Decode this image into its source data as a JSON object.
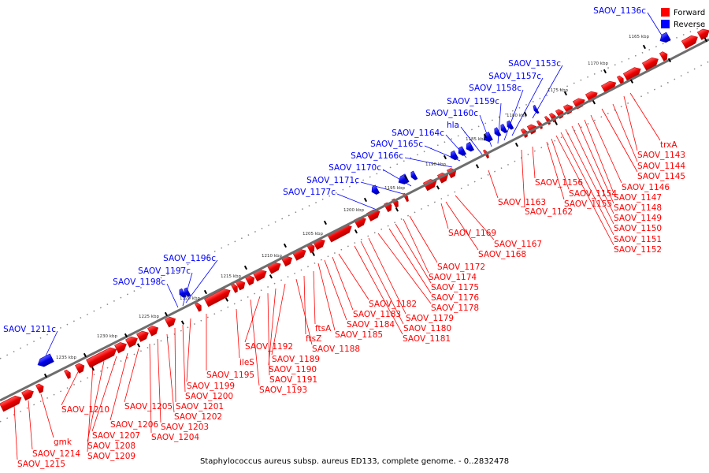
{
  "caption": "Staphylococcus aureus subsp. aureus ED133, complete genome. - 0..2832478",
  "legend": {
    "forward_label": "Forward",
    "reverse_label": "Reverse",
    "forward_color": "#ff0000",
    "reverse_color": "#0000ff"
  },
  "colors": {
    "forward": "#ff0000",
    "reverse": "#0000ff",
    "backbone": "#888888"
  },
  "ticks": [
    "1165 kbp",
    "1170 kbp",
    "1175 kbp",
    "1180 kbp",
    "1185 kbp",
    "1190 kbp",
    "1195 kbp",
    "1200 kbp",
    "1205 kbp",
    "1210 kbp",
    "1215 kbp",
    "1220 kbp",
    "1225 kbp",
    "1230 kbp",
    "1235 kbp"
  ],
  "reverse_labels": [
    "SAOV_1136c",
    "SAOV_1153c",
    "SAOV_1157c",
    "SAOV_1158c",
    "SAOV_1159c",
    "SAOV_1160c",
    "hla",
    "SAOV_1164c",
    "SAOV_1165c",
    "SAOV_1166c",
    "SAOV_1170c",
    "SAOV_1171c",
    "SAOV_1177c",
    "SAOV_1196c",
    "SAOV_1197c",
    "SAOV_1198c",
    "SAOV_1211c"
  ],
  "forward_labels": [
    "trxA",
    "SAOV_1143",
    "SAOV_1144",
    "SAOV_1145",
    "SAOV_1146",
    "SAOV_1147",
    "SAOV_1148",
    "SAOV_1149",
    "SAOV_1150",
    "SAOV_1151",
    "SAOV_1152",
    "SAOV_1154",
    "SAOV_1155",
    "SAOV_1156",
    "SAOV_1162",
    "SAOV_1163",
    "SAOV_1167",
    "SAOV_1168",
    "SAOV_1169",
    "SAOV_1172",
    "SAOV_1174",
    "SAOV_1175",
    "SAOV_1176",
    "SAOV_1178",
    "SAOV_1179",
    "SAOV_1180",
    "SAOV_1181",
    "SAOV_1182",
    "SAOV_1183",
    "SAOV_1184",
    "SAOV_1185",
    "ftsA",
    "ftsZ",
    "SAOV_1188",
    "SAOV_1189",
    "SAOV_1190",
    "SAOV_1191",
    "SAOV_1192",
    "SAOV_1193",
    "ileS",
    "SAOV_1195",
    "SAOV_1199",
    "SAOV_1200",
    "SAOV_1201",
    "SAOV_1202",
    "SAOV_1203",
    "SAOV_1204",
    "SAOV_1205",
    "SAOV_1206",
    "SAOV_1207",
    "SAOV_1208",
    "SAOV_1209",
    "SAOV_1210",
    "gmk",
    "SAOV_1214",
    "SAOV_1215"
  ]
}
